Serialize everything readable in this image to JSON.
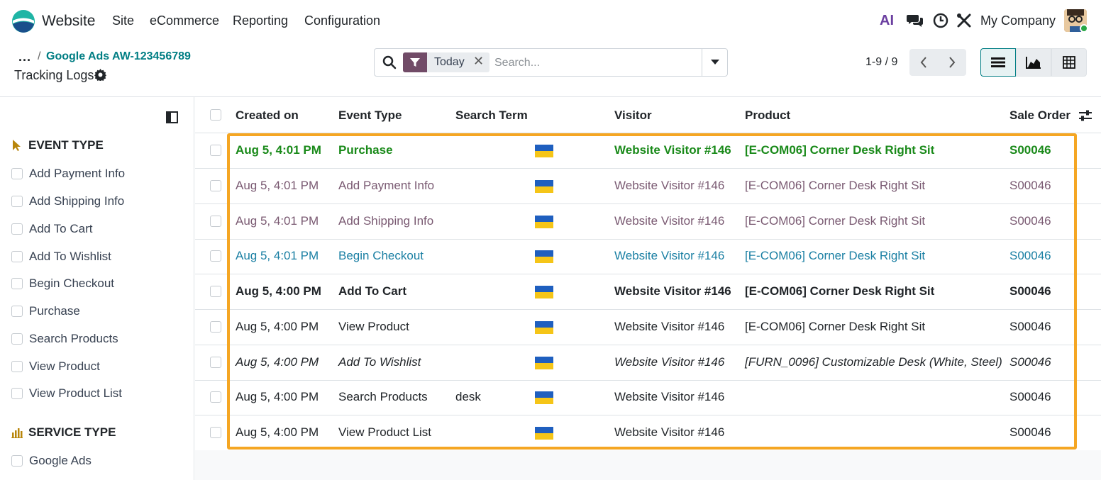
{
  "nav": {
    "app_name": "Website",
    "menu": [
      "Site",
      "eCommerce",
      "Reporting",
      "Configuration"
    ],
    "company": "My Company",
    "ai_label": "AI"
  },
  "breadcrumb": {
    "dots": "...",
    "separator": "/",
    "parent": "Google Ads AW-123456789",
    "title": "Tracking Logs"
  },
  "search": {
    "facet_value": "Today",
    "facet_remove": "✕",
    "placeholder": "Search..."
  },
  "pager": {
    "value": "1-9 / 9"
  },
  "sidebar": {
    "event_type_heading": "EVENT TYPE",
    "event_types": [
      "Add Payment Info",
      "Add Shipping Info",
      "Add To Cart",
      "Add To Wishlist",
      "Begin Checkout",
      "Purchase",
      "Search Products",
      "View Product",
      "View Product List"
    ],
    "service_type_heading": "SERVICE TYPE",
    "service_types": [
      "Google Ads"
    ]
  },
  "list": {
    "columns": [
      "Created on",
      "Event Type",
      "Search Term",
      "Visitor",
      "Product",
      "Sale Order"
    ],
    "rows": [
      {
        "created": "Aug 5, 4:01 PM",
        "event": "Purchase",
        "term": "",
        "visitor": "Website Visitor #146",
        "product": "[E-COM06] Corner Desk Right Sit",
        "order": "S00046",
        "style": "green"
      },
      {
        "created": "Aug 5, 4:01 PM",
        "event": "Add Payment Info",
        "term": "",
        "visitor": "Website Visitor #146",
        "product": "[E-COM06] Corner Desk Right Sit",
        "order": "S00046",
        "style": "muted"
      },
      {
        "created": "Aug 5, 4:01 PM",
        "event": "Add Shipping Info",
        "term": "",
        "visitor": "Website Visitor #146",
        "product": "[E-COM06] Corner Desk Right Sit",
        "order": "S00046",
        "style": "muted"
      },
      {
        "created": "Aug 5, 4:01 PM",
        "event": "Begin Checkout",
        "term": "",
        "visitor": "Website Visitor #146",
        "product": "[E-COM06] Corner Desk Right Sit",
        "order": "S00046",
        "style": "teal"
      },
      {
        "created": "Aug 5, 4:00 PM",
        "event": "Add To Cart",
        "term": "",
        "visitor": "Website Visitor #146",
        "product": "[E-COM06] Corner Desk Right Sit",
        "order": "S00046",
        "style": "bold"
      },
      {
        "created": "Aug 5, 4:00 PM",
        "event": "View Product",
        "term": "",
        "visitor": "Website Visitor #146",
        "product": "[E-COM06] Corner Desk Right Sit",
        "order": "S00046",
        "style": "normal"
      },
      {
        "created": "Aug 5, 4:00 PM",
        "event": "Add To Wishlist",
        "term": "",
        "visitor": "Website Visitor #146",
        "product": "[FURN_0096] Customizable Desk (White, Steel)",
        "order": "S00046",
        "style": "italic"
      },
      {
        "created": "Aug 5, 4:00 PM",
        "event": "Search Products",
        "term": "desk",
        "visitor": "Website Visitor #146",
        "product": "",
        "order": "S00046",
        "style": "normal"
      },
      {
        "created": "Aug 5, 4:00 PM",
        "event": "View Product List",
        "term": "",
        "visitor": "Website Visitor #146",
        "product": "",
        "order": "S00046",
        "style": "normal"
      }
    ]
  },
  "colors": {
    "accent": "#017e84",
    "brand": "#714b67",
    "highlight": "#f5a623"
  }
}
